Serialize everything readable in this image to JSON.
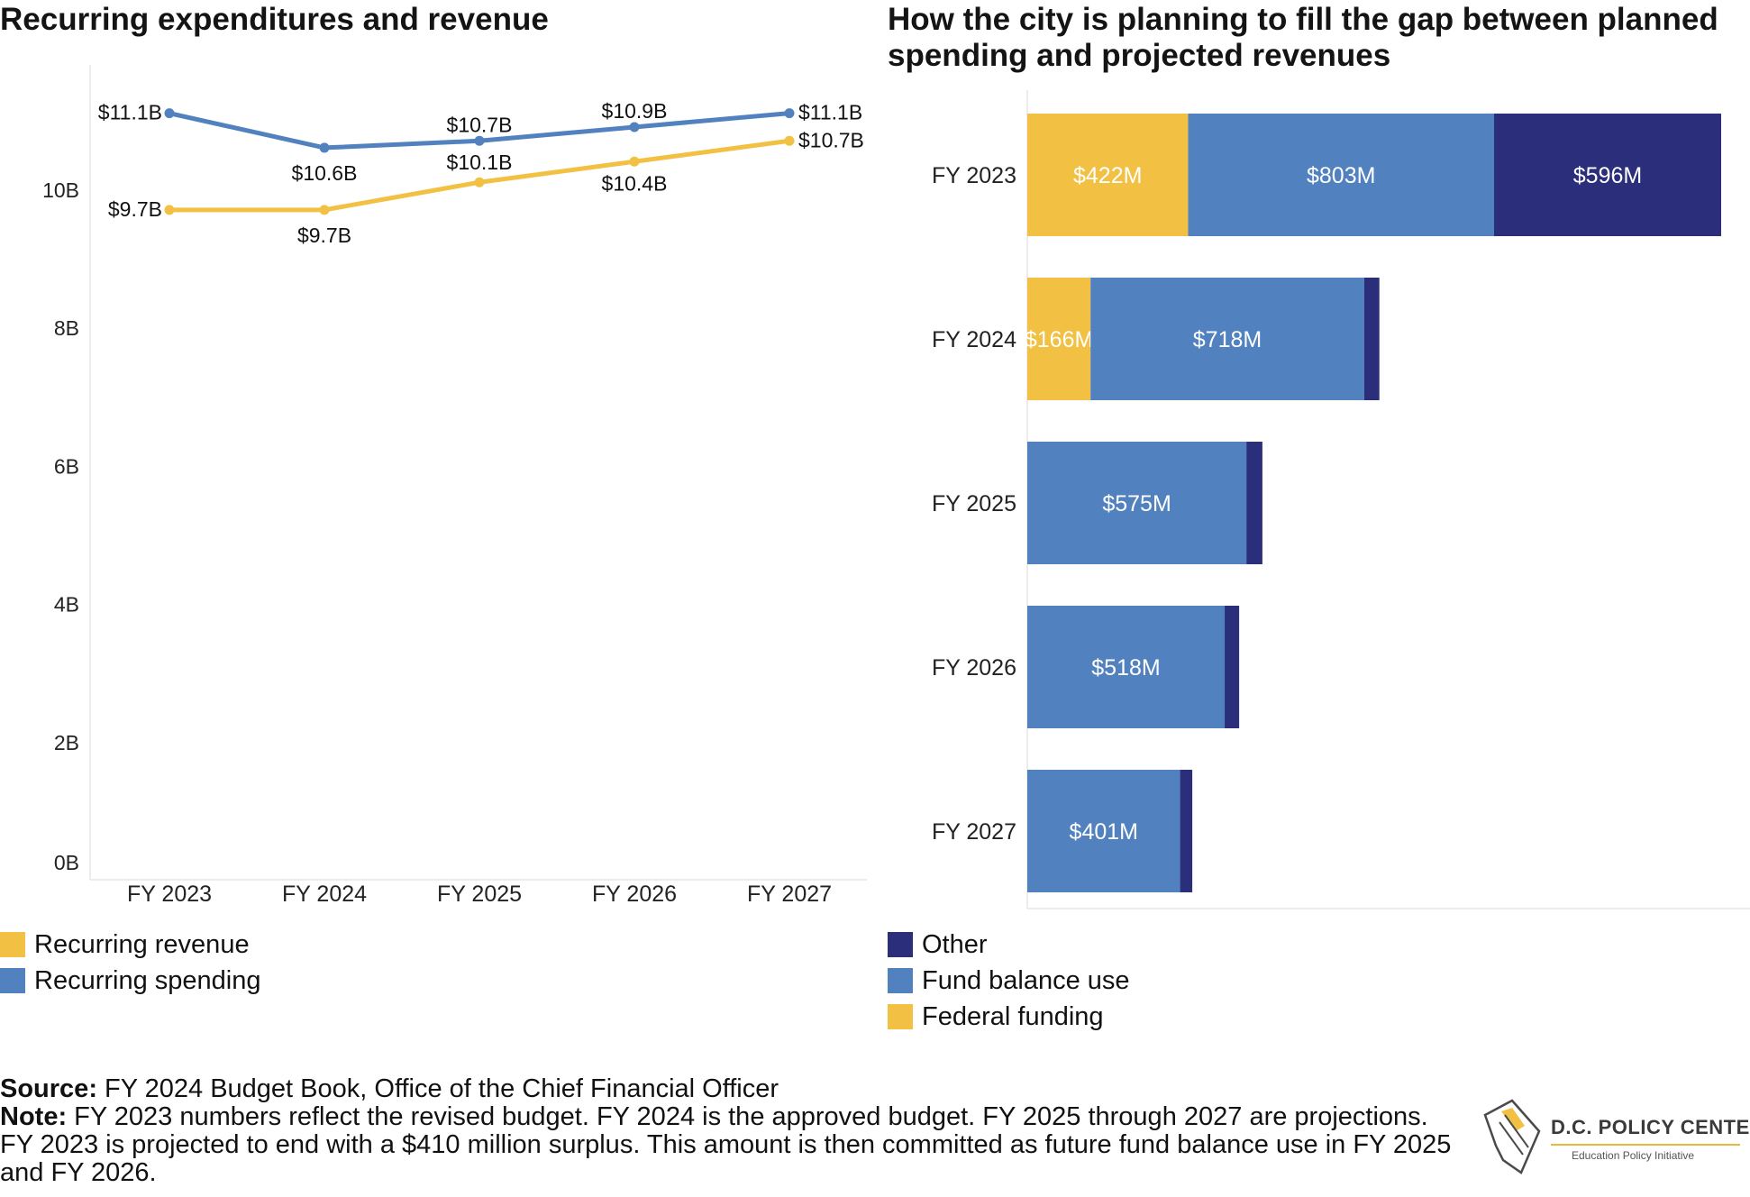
{
  "left_title": "Recurring expenditures and revenue",
  "right_title": "How the city is planning to fill the gap between planned spending and projected revenues",
  "colors": {
    "revenue": "#F2C143",
    "spending": "#5182BF",
    "other": "#2B2F7B",
    "federal": "#F2C143",
    "fund": "#5182BF"
  },
  "chart_data": [
    {
      "type": "line",
      "title": "Recurring expenditures and revenue",
      "categories": [
        "FY 2023",
        "FY 2024",
        "FY 2025",
        "FY 2026",
        "FY 2027"
      ],
      "y_ticks": [
        "0B",
        "2B",
        "4B",
        "6B",
        "8B",
        "10B"
      ],
      "ylim": [
        0,
        11.8
      ],
      "series": [
        {
          "name": "Recurring spending",
          "values": [
            11.1,
            10.6,
            10.7,
            10.9,
            11.1
          ],
          "labels": [
            "$11.1B",
            "$10.6B",
            "$10.7B",
            "$10.9B",
            "$11.1B"
          ]
        },
        {
          "name": "Recurring revenue",
          "values": [
            9.7,
            9.7,
            10.1,
            10.4,
            10.7
          ],
          "labels": [
            "$9.7B",
            "$9.7B",
            "$10.1B",
            "$10.4B",
            "$10.7B"
          ]
        }
      ],
      "legend": [
        "Recurring revenue",
        "Recurring spending"
      ]
    },
    {
      "type": "bar",
      "orientation": "horizontal",
      "stacked": true,
      "title": "How the city is planning to fill the gap between planned spending and projected revenues",
      "categories": [
        "FY 2023",
        "FY 2024",
        "FY 2025",
        "FY 2026",
        "FY 2027"
      ],
      "series": [
        {
          "name": "Federal funding",
          "values": [
            422,
            166,
            0,
            0,
            0
          ],
          "labels": [
            "$422M",
            "$166M",
            "",
            "",
            ""
          ]
        },
        {
          "name": "Fund balance use",
          "values": [
            803,
            718,
            575,
            518,
            401
          ],
          "labels": [
            "$803M",
            "$718M",
            "$575M",
            "$518M",
            "$401M"
          ]
        },
        {
          "name": "Other",
          "values": [
            596,
            40,
            42,
            38,
            32
          ],
          "labels": [
            "$596M",
            "",
            "",
            "",
            ""
          ]
        }
      ],
      "legend": [
        "Other",
        "Fund balance use",
        "Federal funding"
      ]
    }
  ],
  "footer": {
    "source_label": "Source:",
    "source_text": " FY 2024 Budget Book, Office of the Chief Financial Officer",
    "note_label": "Note:",
    "note_text": " FY 2023 numbers reflect the revised budget. FY 2024 is the approved budget. FY 2025 through 2027 are projections. FY 2023 is projected to end with a $410 million surplus. This amount is then committed as future fund balance use in FY 2025 and FY 2026."
  },
  "logo": {
    "name": "D.C. POLICY CENTER",
    "subtitle": "Education Policy Initiative"
  }
}
